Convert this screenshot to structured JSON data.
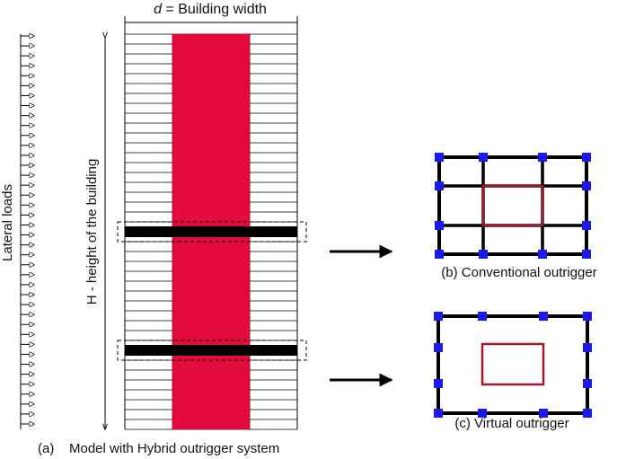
{
  "top_label": {
    "variable": "d",
    "text": " = Building width"
  },
  "left_label": "Lateral loads",
  "height_label": "H - height of the building",
  "captions": {
    "a": "(a)    Model with Hybrid outrigger system",
    "b": "(b) Conventional outrigger",
    "c": "(c) Virtual outrigger"
  },
  "model": {
    "floor_count": 40,
    "load_arrow_count": 40,
    "outrigger_levels_from_top": [
      20,
      32
    ]
  },
  "colors": {
    "core": "#e30b3c",
    "core_outline": "#b01030",
    "outrigger_beam": "#000000",
    "joint_nodes": "#1a1aee",
    "inner_core_box": "#a01a2a",
    "lines": "#000000"
  }
}
